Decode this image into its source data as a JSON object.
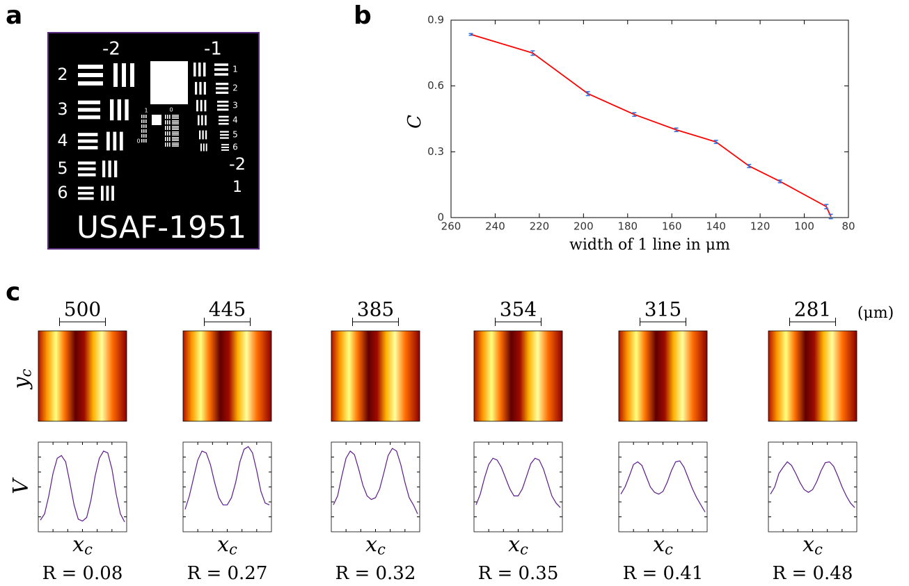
{
  "panel_labels": [
    "a",
    "b",
    "c"
  ],
  "target": {
    "group_labels": [
      "-2",
      "-1"
    ],
    "left_elements": [
      "2",
      "3",
      "4",
      "5",
      "6"
    ],
    "right_elements": [
      "1",
      "2",
      "3",
      "4",
      "5",
      "6"
    ],
    "lower_group": "-2",
    "lower_element": "1",
    "inner_labels": [
      "1",
      "0",
      "0"
    ],
    "name": "USAF-1951"
  },
  "panel_c": {
    "y_label": "y_c",
    "unit": "(μm)"
  },
  "chart_data": [
    {
      "type": "line",
      "xlabel": "width of 1 line in μm",
      "ylabel": "C",
      "x": [
        251,
        223,
        198,
        177,
        158,
        140,
        125,
        111,
        90,
        88
      ],
      "values": [
        0.835,
        0.75,
        0.565,
        0.47,
        0.4,
        0.345,
        0.235,
        0.165,
        0.05,
        0.005
      ],
      "errors": [
        0.004,
        0.01,
        0.009,
        0.008,
        0.008,
        0.007,
        0.007,
        0.006,
        0.01,
        0.01
      ],
      "color": "#ff0000",
      "error_color": "#2f6fdd",
      "xlim": [
        260,
        80
      ],
      "ylim": [
        0,
        0.9
      ],
      "xticks": [
        260,
        240,
        220,
        200,
        180,
        160,
        140,
        120,
        100,
        80
      ],
      "yticks": [
        0,
        0.3,
        0.6,
        0.9
      ]
    },
    {
      "type": "line",
      "annotation": "500",
      "ylabel": "V",
      "xlabel": "x_c",
      "caption": "R = 0.08",
      "color": "#5b1a8b",
      "ylim": [
        0,
        1
      ],
      "values": [
        0.13,
        0.2,
        0.4,
        0.65,
        0.82,
        0.85,
        0.78,
        0.55,
        0.3,
        0.14,
        0.12,
        0.16,
        0.35,
        0.62,
        0.82,
        0.9,
        0.88,
        0.7,
        0.42,
        0.2,
        0.11
      ]
    },
    {
      "type": "line",
      "annotation": "445",
      "xlabel": "x_c",
      "caption": "R = 0.27",
      "color": "#5b1a8b",
      "ylim": [
        0,
        1
      ],
      "values": [
        0.25,
        0.4,
        0.6,
        0.8,
        0.9,
        0.88,
        0.75,
        0.55,
        0.38,
        0.3,
        0.3,
        0.38,
        0.55,
        0.78,
        0.92,
        0.95,
        0.88,
        0.68,
        0.45,
        0.32,
        0.3
      ]
    },
    {
      "type": "line",
      "annotation": "385",
      "xlabel": "x_c",
      "caption": "R = 0.32",
      "color": "#5b1a8b",
      "ylim": [
        0,
        1
      ],
      "values": [
        0.3,
        0.4,
        0.62,
        0.82,
        0.9,
        0.86,
        0.7,
        0.52,
        0.4,
        0.36,
        0.38,
        0.48,
        0.66,
        0.85,
        0.93,
        0.9,
        0.75,
        0.55,
        0.38,
        0.3,
        0.2
      ]
    },
    {
      "type": "line",
      "annotation": "354",
      "xlabel": "x_c",
      "caption": "R = 0.35",
      "color": "#5b1a8b",
      "ylim": [
        0,
        1
      ],
      "values": [
        0.3,
        0.42,
        0.6,
        0.75,
        0.82,
        0.8,
        0.72,
        0.6,
        0.48,
        0.4,
        0.4,
        0.48,
        0.62,
        0.76,
        0.82,
        0.8,
        0.7,
        0.55,
        0.4,
        0.32,
        0.27
      ]
    },
    {
      "type": "line",
      "annotation": "315",
      "xlabel": "x_c",
      "caption": "R = 0.41",
      "color": "#5b1a8b",
      "ylim": [
        0,
        1
      ],
      "values": [
        0.42,
        0.5,
        0.62,
        0.75,
        0.78,
        0.74,
        0.62,
        0.5,
        0.44,
        0.42,
        0.45,
        0.55,
        0.68,
        0.78,
        0.79,
        0.72,
        0.6,
        0.48,
        0.38,
        0.3,
        0.22
      ]
    },
    {
      "type": "line",
      "annotation": "281",
      "xlabel": "x_c",
      "caption": "R = 0.48",
      "color": "#5b1a8b",
      "ylim": [
        0,
        1
      ],
      "values": [
        0.42,
        0.5,
        0.65,
        0.72,
        0.78,
        0.74,
        0.65,
        0.55,
        0.47,
        0.44,
        0.47,
        0.56,
        0.68,
        0.77,
        0.78,
        0.73,
        0.62,
        0.5,
        0.4,
        0.32,
        0.27
      ]
    }
  ]
}
